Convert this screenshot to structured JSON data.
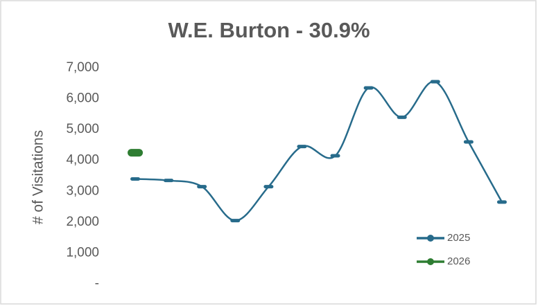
{
  "chart_data": {
    "type": "line",
    "title": "W.E. Burton - 30.9%",
    "y_label": "# of Visitations",
    "categories": [
      null,
      null,
      null,
      null,
      null,
      null,
      null,
      null,
      null,
      null,
      null,
      null
    ],
    "series": [
      {
        "name": "2025",
        "color": "#276b8b",
        "values": [
          3400,
          3350,
          3150,
          2050,
          3150,
          4450,
          4150,
          6350,
          5400,
          6550,
          4600,
          2650
        ]
      },
      {
        "name": "2026",
        "color": "#2e7d32",
        "values": [
          4250,
          null,
          null,
          null,
          null,
          null,
          null,
          null,
          null,
          null,
          null,
          null
        ]
      }
    ],
    "ylim": [
      0,
      7000
    ],
    "yticks": [
      {
        "value": 0,
        "label": "-"
      },
      {
        "value": 1000,
        "label": "1,000"
      },
      {
        "value": 2000,
        "label": "2,000"
      },
      {
        "value": 3000,
        "label": "3,000"
      },
      {
        "value": 4000,
        "label": "4,000"
      },
      {
        "value": 5000,
        "label": "5,000"
      },
      {
        "value": 6000,
        "label": "6,000"
      },
      {
        "value": 7000,
        "label": "7,000"
      }
    ],
    "grid": false,
    "legend": "lower right"
  }
}
